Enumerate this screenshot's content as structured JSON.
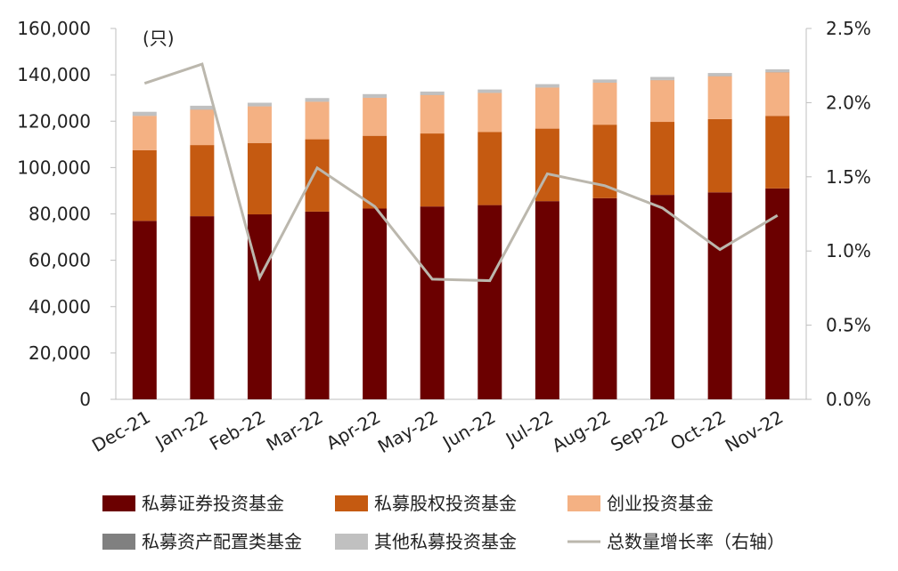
{
  "chart_data": {
    "type": "bar",
    "stacked": true,
    "categories": [
      "Dec-21",
      "Jan-22",
      "Feb-22",
      "Mar-22",
      "Apr-22",
      "May-22",
      "Jun-22",
      "Jul-22",
      "Aug-22",
      "Sep-22",
      "Oct-22",
      "Nov-22"
    ],
    "unit_label": "(只)",
    "left_axis": {
      "ticks": [
        "0",
        "20,000",
        "40,000",
        "60,000",
        "80,000",
        "100,000",
        "120,000",
        "140,000",
        "160,000"
      ],
      "ylim": [
        0,
        160000
      ]
    },
    "right_axis": {
      "ticks": [
        "0.0%",
        "0.5%",
        "1.0%",
        "1.5%",
        "2.0%",
        "2.5%"
      ],
      "ylim": [
        0,
        2.5
      ]
    },
    "series": [
      {
        "name": "私募证券投资基金",
        "color": "#6b0000",
        "values": [
          77000,
          79000,
          79800,
          81000,
          82300,
          83200,
          83800,
          85500,
          86800,
          88200,
          89300,
          91000
        ]
      },
      {
        "name": "私募股权投资基金",
        "color": "#c55a11",
        "values": [
          30500,
          30700,
          30800,
          31200,
          31400,
          31500,
          31500,
          31300,
          31700,
          31500,
          31600,
          31300
        ]
      },
      {
        "name": "创业投资基金",
        "color": "#f4b183",
        "values": [
          14800,
          15300,
          15800,
          16200,
          16400,
          16600,
          16900,
          17700,
          18100,
          18000,
          18500,
          18800
        ]
      },
      {
        "name": "私募资产配置类基金",
        "color": "#808080",
        "values": [
          50,
          60,
          60,
          70,
          80,
          80,
          80,
          80,
          90,
          90,
          90,
          90
        ]
      },
      {
        "name": "其他私募投资基金",
        "color": "#c0c0c0",
        "values": [
          1700,
          1600,
          1500,
          1500,
          1500,
          1400,
          1400,
          1400,
          1300,
          1300,
          1300,
          1200
        ]
      }
    ],
    "line_series": {
      "name": "总数量增长率（右轴）",
      "color": "#bbb7ad",
      "values": [
        2.13,
        2.26,
        0.82,
        1.56,
        1.3,
        0.81,
        0.8,
        1.52,
        1.44,
        1.29,
        1.01,
        1.24
      ]
    },
    "legend": [
      "私募证券投资基金",
      "私募股权投资基金",
      "创业投资基金",
      "私募资产配置类基金",
      "其他私募投资基金",
      "总数量增长率（右轴）"
    ]
  }
}
